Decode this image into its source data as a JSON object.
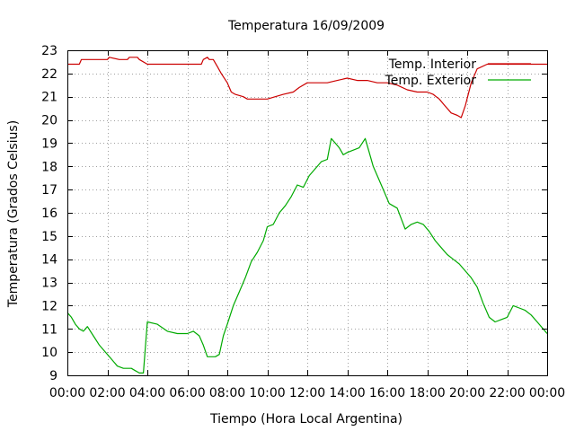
{
  "chart_data": {
    "type": "line",
    "title": "Temperatura 16/09/2009",
    "xlabel": "Tiempo (Hora Local Argentina)",
    "ylabel": "Temperatura (Grados Celsius)",
    "xlim": [
      0,
      24
    ],
    "ylim": [
      9,
      23
    ],
    "x_tick_labels": [
      "00:00",
      "02:00",
      "04:00",
      "06:00",
      "08:00",
      "10:00",
      "12:00",
      "14:00",
      "16:00",
      "18:00",
      "20:00",
      "22:00",
      "00:00"
    ],
    "y_tick_labels": [
      "9",
      "10",
      "11",
      "12",
      "13",
      "14",
      "15",
      "16",
      "17",
      "18",
      "19",
      "20",
      "21",
      "22",
      "23"
    ],
    "grid": true,
    "legend_position": "top-right",
    "series": [
      {
        "name": "Temp. Interior",
        "color": "#cc0000",
        "x": [
          0.0,
          0.6,
          0.7,
          1.4,
          2.0,
          2.1,
          2.6,
          3.0,
          3.1,
          3.5,
          3.6,
          4.0,
          5.0,
          6.0,
          6.5,
          6.7,
          6.8,
          7.0,
          7.1,
          7.3,
          7.5,
          7.7,
          8.0,
          8.2,
          8.4,
          8.8,
          9.0,
          9.5,
          10.0,
          10.8,
          11.3,
          11.6,
          12.0,
          12.5,
          13.0,
          13.5,
          14.0,
          14.5,
          15.0,
          15.5,
          16.0,
          16.5,
          17.0,
          17.5,
          18.0,
          18.3,
          18.6,
          18.9,
          19.2,
          19.5,
          19.7,
          19.9,
          20.2,
          20.5,
          21.0,
          22.0,
          23.0,
          24.0
        ],
        "y": [
          22.4,
          22.4,
          22.6,
          22.6,
          22.6,
          22.7,
          22.6,
          22.6,
          22.7,
          22.7,
          22.6,
          22.4,
          22.4,
          22.4,
          22.4,
          22.4,
          22.6,
          22.7,
          22.6,
          22.6,
          22.3,
          22.0,
          21.6,
          21.2,
          21.1,
          21.0,
          20.9,
          20.9,
          20.9,
          21.1,
          21.2,
          21.4,
          21.6,
          21.6,
          21.6,
          21.7,
          21.8,
          21.7,
          21.7,
          21.6,
          21.6,
          21.5,
          21.3,
          21.2,
          21.2,
          21.1,
          20.9,
          20.6,
          20.3,
          20.2,
          20.1,
          20.6,
          21.6,
          22.2,
          22.4,
          22.4,
          22.4,
          22.4
        ]
      },
      {
        "name": "Temp. Exterior",
        "color": "#00aa00",
        "x": [
          0.0,
          0.2,
          0.4,
          0.6,
          0.8,
          1.0,
          1.3,
          1.6,
          1.9,
          2.2,
          2.5,
          2.8,
          3.0,
          3.2,
          3.4,
          3.6,
          3.8,
          4.0,
          4.5,
          5.0,
          5.5,
          6.0,
          6.3,
          6.6,
          6.8,
          7.0,
          7.2,
          7.4,
          7.6,
          7.8,
          8.0,
          8.3,
          8.6,
          8.9,
          9.2,
          9.5,
          9.8,
          10.0,
          10.3,
          10.6,
          10.9,
          11.2,
          11.5,
          11.8,
          12.1,
          12.4,
          12.7,
          13.0,
          13.2,
          13.4,
          13.6,
          13.8,
          14.0,
          14.3,
          14.6,
          14.9,
          15.1,
          15.3,
          15.5,
          15.8,
          16.1,
          16.5,
          16.9,
          17.2,
          17.5,
          17.8,
          18.1,
          18.4,
          18.7,
          19.0,
          19.3,
          19.6,
          19.9,
          20.2,
          20.5,
          20.8,
          21.1,
          21.4,
          21.7,
          22.0,
          22.3,
          22.6,
          22.9,
          23.2,
          23.5,
          23.8,
          24.0
        ],
        "y": [
          11.7,
          11.5,
          11.2,
          11.0,
          10.9,
          11.1,
          10.7,
          10.3,
          10.0,
          9.7,
          9.4,
          9.3,
          9.3,
          9.3,
          9.2,
          9.1,
          9.1,
          11.3,
          11.2,
          10.9,
          10.8,
          10.8,
          10.9,
          10.7,
          10.3,
          9.8,
          9.8,
          9.8,
          9.9,
          10.7,
          11.2,
          12.0,
          12.6,
          13.2,
          13.9,
          14.3,
          14.8,
          15.4,
          15.5,
          16.0,
          16.3,
          16.7,
          17.2,
          17.1,
          17.6,
          17.9,
          18.2,
          18.3,
          19.2,
          19.0,
          18.8,
          18.5,
          18.6,
          18.7,
          18.8,
          19.2,
          18.6,
          18.0,
          17.6,
          17.0,
          16.4,
          16.2,
          15.3,
          15.5,
          15.6,
          15.5,
          15.2,
          14.8,
          14.5,
          14.2,
          14.0,
          13.8,
          13.5,
          13.2,
          12.8,
          12.1,
          11.5,
          11.3,
          11.4,
          11.5,
          12.0,
          11.9,
          11.8,
          11.6,
          11.3,
          11.0,
          10.8
        ]
      }
    ]
  }
}
